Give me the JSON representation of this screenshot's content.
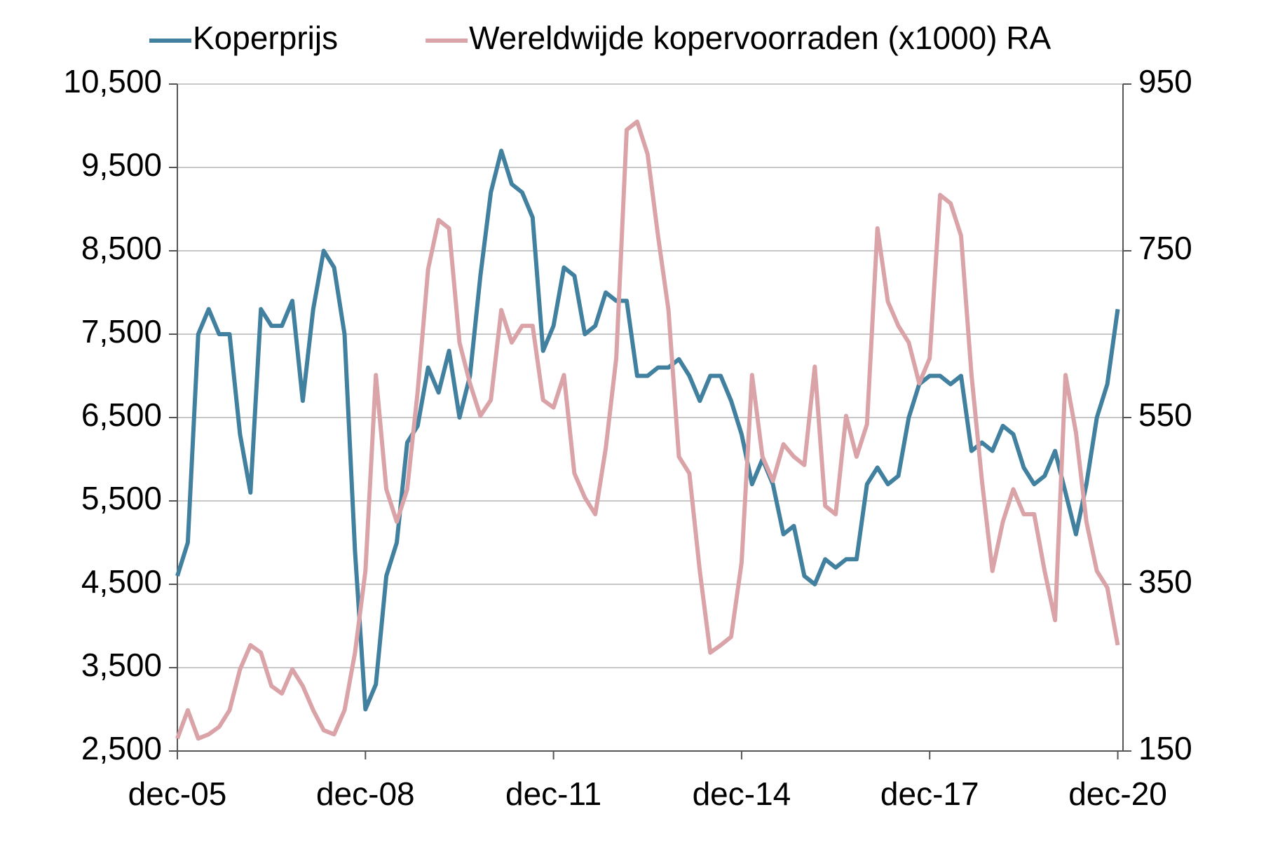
{
  "chart_data": {
    "type": "line",
    "x": [
      "2005-12",
      "2006-02",
      "2006-04",
      "2006-06",
      "2006-08",
      "2006-10",
      "2006-12",
      "2007-02",
      "2007-04",
      "2007-06",
      "2007-08",
      "2007-10",
      "2007-12",
      "2008-02",
      "2008-04",
      "2008-06",
      "2008-08",
      "2008-10",
      "2008-12",
      "2009-02",
      "2009-04",
      "2009-06",
      "2009-08",
      "2009-10",
      "2009-12",
      "2010-02",
      "2010-04",
      "2010-06",
      "2010-08",
      "2010-10",
      "2010-12",
      "2011-02",
      "2011-04",
      "2011-06",
      "2011-08",
      "2011-10",
      "2011-12",
      "2012-02",
      "2012-04",
      "2012-06",
      "2012-08",
      "2012-10",
      "2012-12",
      "2013-02",
      "2013-04",
      "2013-06",
      "2013-08",
      "2013-10",
      "2013-12",
      "2014-02",
      "2014-04",
      "2014-06",
      "2014-08",
      "2014-10",
      "2014-12",
      "2015-02",
      "2015-04",
      "2015-06",
      "2015-08",
      "2015-10",
      "2015-12",
      "2016-02",
      "2016-04",
      "2016-06",
      "2016-08",
      "2016-10",
      "2016-12",
      "2017-02",
      "2017-04",
      "2017-06",
      "2017-08",
      "2017-10",
      "2017-12",
      "2018-02",
      "2018-04",
      "2018-06",
      "2018-08",
      "2018-10",
      "2018-12",
      "2019-02",
      "2019-04",
      "2019-06",
      "2019-08",
      "2019-10",
      "2019-12",
      "2020-02",
      "2020-04",
      "2020-06",
      "2020-08",
      "2020-10",
      "2020-12"
    ],
    "series": [
      {
        "name": "Koperprijs",
        "color": "#41809f",
        "values": [
          4600,
          5000,
          7500,
          7800,
          7500,
          7500,
          6300,
          5600,
          7800,
          7600,
          7600,
          7900,
          6700,
          7800,
          8500,
          8300,
          7500,
          4900,
          3000,
          3300,
          4600,
          5000,
          6200,
          6400,
          7100,
          6800,
          7300,
          6500,
          7000,
          8200,
          9200,
          9700,
          9300,
          9200,
          8900,
          7300,
          7600,
          8300,
          8200,
          7500,
          7600,
          8000,
          7900,
          7900,
          7000,
          7000,
          7100,
          7100,
          7200,
          7000,
          6700,
          7000,
          7000,
          6700,
          6300,
          5700,
          6000,
          5700,
          5100,
          5200,
          4600,
          4500,
          4800,
          4700,
          4800,
          4800,
          5700,
          5900,
          5700,
          5800,
          6500,
          6900,
          7000,
          7000,
          6900,
          7000,
          6100,
          6200,
          6100,
          6400,
          6300,
          5900,
          5700,
          5800,
          6100,
          5600,
          5100,
          5700,
          6500,
          6900,
          7800
        ]
      },
      {
        "name": "Wereldwijde kopervoorraden (x1000) RA",
        "color": "#d9a3a8",
        "axis": "y2",
        "values": [
          165,
          199,
          165,
          170,
          179,
          199,
          248,
          277,
          268,
          228,
          219,
          248,
          228,
          199,
          175,
          170,
          199,
          268,
          366,
          601,
          464,
          425,
          464,
          581,
          728,
          787,
          777,
          640,
          591,
          552,
          571,
          679,
          640,
          660,
          660,
          571,
          562,
          601,
          483,
          454,
          434,
          513,
          621,
          895,
          905,
          866,
          768,
          679,
          503,
          483,
          366,
          268,
          277,
          287,
          376,
          601,
          503,
          474,
          518,
          503,
          493,
          611,
          444,
          434,
          552,
          503,
          542,
          777,
          689,
          660,
          640,
          591,
          621,
          817,
          807,
          768,
          601,
          474,
          366,
          425,
          464,
          434,
          434,
          366,
          307,
          601,
          532,
          425,
          366,
          346,
          277
        ]
      }
    ],
    "xlim": [
      "2005-12",
      "2021-01"
    ],
    "xticks": [
      {
        "value": "2005-12",
        "label": "dec-05"
      },
      {
        "value": "2008-12",
        "label": "dec-08"
      },
      {
        "value": "2011-12",
        "label": "dec-11"
      },
      {
        "value": "2014-12",
        "label": "dec-14"
      },
      {
        "value": "2017-12",
        "label": "dec-17"
      },
      {
        "value": "2020-12",
        "label": "dec-20"
      }
    ],
    "ylim": [
      2500,
      10500
    ],
    "yticks": [
      {
        "value": 2500,
        "label": "2,500"
      },
      {
        "value": 3500,
        "label": "3,500"
      },
      {
        "value": 4500,
        "label": "4,500"
      },
      {
        "value": 5500,
        "label": "5,500"
      },
      {
        "value": 6500,
        "label": "6,500"
      },
      {
        "value": 7500,
        "label": "7,500"
      },
      {
        "value": 8500,
        "label": "8,500"
      },
      {
        "value": 9500,
        "label": "9,500"
      },
      {
        "value": 10500,
        "label": "10,500"
      }
    ],
    "y2lim": [
      150,
      950
    ],
    "y2ticks": [
      150,
      350,
      550,
      750,
      950
    ],
    "grid": true
  }
}
